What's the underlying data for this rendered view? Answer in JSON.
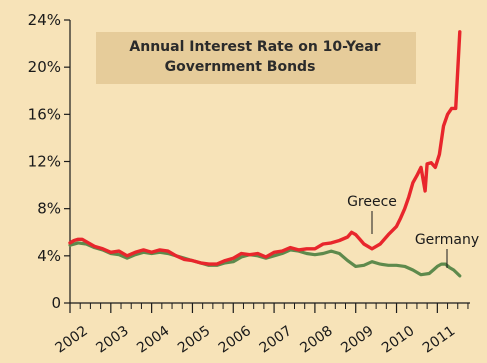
{
  "chart_data": {
    "type": "line",
    "title": "Annual Interest Rate on 10-Year",
    "subtitle": "Government Bonds",
    "xlabel": "",
    "ylabel": "",
    "ylim": [
      0,
      24
    ],
    "xlim": [
      2002,
      2011.8
    ],
    "y_ticks": [
      "0",
      "4%",
      "8%",
      "12%",
      "16%",
      "20%",
      "24%"
    ],
    "y_tick_values": [
      0,
      4,
      8,
      12,
      16,
      20,
      24
    ],
    "x_ticks": [
      "2002",
      "2003",
      "2004",
      "2005",
      "2006",
      "2007",
      "2008",
      "2009",
      "2010",
      "2011"
    ],
    "x_tick_values": [
      2002,
      2003,
      2004,
      2005,
      2006,
      2007,
      2008,
      2009,
      2010,
      2011
    ],
    "grid": false,
    "series": [
      {
        "name": "Greece",
        "color": "#e8262c",
        "x": [
          2002.0,
          2002.1,
          2002.2,
          2002.3,
          2002.4,
          2002.6,
          2002.8,
          2003.0,
          2003.2,
          2003.4,
          2003.6,
          2003.8,
          2004.0,
          2004.2,
          2004.4,
          2004.6,
          2004.8,
          2005.0,
          2005.2,
          2005.4,
          2005.6,
          2005.8,
          2006.0,
          2006.2,
          2006.4,
          2006.6,
          2006.8,
          2007.0,
          2007.2,
          2007.4,
          2007.6,
          2007.8,
          2008.0,
          2008.2,
          2008.4,
          2008.6,
          2008.8,
          2008.9,
          2009.0,
          2009.1,
          2009.2,
          2009.4,
          2009.6,
          2009.8,
          2010.0,
          2010.1,
          2010.2,
          2010.3,
          2010.4,
          2010.5,
          2010.6,
          2010.7,
          2010.75,
          2010.85,
          2010.95,
          2011.05,
          2011.15,
          2011.25,
          2011.35,
          2011.45,
          2011.55
        ],
        "values": [
          5.1,
          5.3,
          5.4,
          5.4,
          5.2,
          4.8,
          4.6,
          4.3,
          4.4,
          4.0,
          4.3,
          4.5,
          4.3,
          4.5,
          4.4,
          4.0,
          3.7,
          3.6,
          3.4,
          3.3,
          3.3,
          3.6,
          3.8,
          4.2,
          4.1,
          4.2,
          3.9,
          4.3,
          4.4,
          4.7,
          4.5,
          4.6,
          4.6,
          5.0,
          5.1,
          5.3,
          5.6,
          6.0,
          5.8,
          5.4,
          5.0,
          4.6,
          5.0,
          5.8,
          6.5,
          7.2,
          8.0,
          9.0,
          10.2,
          10.8,
          11.5,
          9.5,
          11.8,
          11.9,
          11.5,
          12.6,
          15.0,
          16.0,
          16.5,
          16.5,
          23.0
        ]
      },
      {
        "name": "Germany",
        "color": "#5e8a4c",
        "x": [
          2002.0,
          2002.2,
          2002.4,
          2002.6,
          2002.8,
          2003.0,
          2003.2,
          2003.4,
          2003.6,
          2003.8,
          2004.0,
          2004.2,
          2004.4,
          2004.6,
          2004.8,
          2005.0,
          2005.2,
          2005.4,
          2005.6,
          2005.8,
          2006.0,
          2006.2,
          2006.4,
          2006.6,
          2006.8,
          2007.0,
          2007.2,
          2007.4,
          2007.6,
          2007.8,
          2008.0,
          2008.2,
          2008.4,
          2008.6,
          2008.8,
          2009.0,
          2009.2,
          2009.4,
          2009.6,
          2009.8,
          2010.0,
          2010.2,
          2010.4,
          2010.6,
          2010.8,
          2010.9,
          2011.0,
          2011.1,
          2011.2,
          2011.3,
          2011.4,
          2011.55
        ],
        "values": [
          4.9,
          5.1,
          5.0,
          4.7,
          4.5,
          4.2,
          4.1,
          3.8,
          4.1,
          4.3,
          4.2,
          4.3,
          4.2,
          4.0,
          3.8,
          3.6,
          3.4,
          3.2,
          3.2,
          3.4,
          3.5,
          3.9,
          4.1,
          4.0,
          3.8,
          4.0,
          4.2,
          4.5,
          4.4,
          4.2,
          4.1,
          4.2,
          4.4,
          4.2,
          3.6,
          3.1,
          3.2,
          3.5,
          3.3,
          3.2,
          3.2,
          3.1,
          2.8,
          2.4,
          2.5,
          2.8,
          3.1,
          3.3,
          3.3,
          3.0,
          2.8,
          2.3
        ]
      }
    ]
  }
}
